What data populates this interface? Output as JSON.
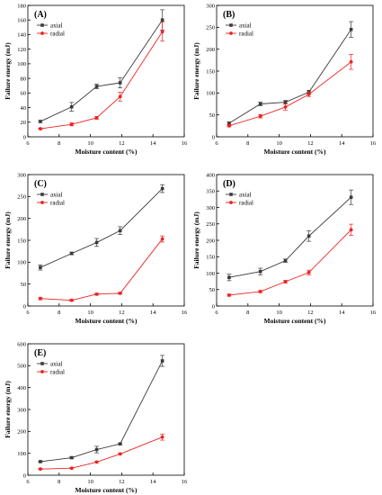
{
  "colors": {
    "axial": "#3a3a3a",
    "radial": "#ee2222",
    "axis": "#000000"
  },
  "chart_data": [
    {
      "type": "line",
      "panel_label": "(A)",
      "xlabel": "Moisture content (%)",
      "ylabel": "Failure energy (mJ)",
      "xlim": [
        6,
        16
      ],
      "ylim": [
        0,
        180
      ],
      "xticks": [
        6,
        8,
        10,
        12,
        14,
        16
      ],
      "yticks": [
        0,
        20,
        40,
        60,
        80,
        100,
        120,
        140,
        160,
        180
      ],
      "x": [
        6.8,
        8.8,
        10.4,
        11.9,
        14.6
      ],
      "legend_position": "top-left",
      "series": [
        {
          "name": "axial",
          "values": [
            21,
            41,
            69,
            74,
            160
          ],
          "errors": [
            1.5,
            6,
            3,
            7,
            14
          ]
        },
        {
          "name": "radial",
          "values": [
            11,
            17,
            26,
            55,
            144
          ],
          "errors": [
            1,
            2,
            2,
            6,
            13
          ]
        }
      ]
    },
    {
      "type": "line",
      "panel_label": "(B)",
      "xlabel": "Moisture content (%)",
      "ylabel": "Failure energy (mJ)",
      "xlim": [
        6,
        16
      ],
      "ylim": [
        0,
        300
      ],
      "xticks": [
        6,
        8,
        10,
        12,
        14,
        16
      ],
      "yticks": [
        0,
        50,
        100,
        150,
        200,
        250,
        300
      ],
      "x": [
        6.8,
        8.8,
        10.4,
        11.9,
        14.6
      ],
      "legend_position": "top-left",
      "series": [
        {
          "name": "axial",
          "values": [
            31,
            75,
            79,
            102,
            245
          ],
          "errors": [
            3,
            4,
            4,
            4,
            18
          ]
        },
        {
          "name": "radial",
          "values": [
            25,
            47,
            68,
            97,
            171
          ],
          "errors": [
            2,
            4,
            7,
            5,
            17
          ]
        }
      ]
    },
    {
      "type": "line",
      "panel_label": "(C)",
      "xlabel": "Moisture content (%)",
      "ylabel": "Failure energy (mJ)",
      "xlim": [
        6,
        16
      ],
      "ylim": [
        0,
        300
      ],
      "xticks": [
        6,
        8,
        10,
        12,
        14,
        16
      ],
      "yticks": [
        0,
        50,
        100,
        150,
        200,
        250,
        300
      ],
      "x": [
        6.8,
        8.8,
        10.4,
        11.9,
        14.6
      ],
      "legend_position": "top-left",
      "series": [
        {
          "name": "axial",
          "values": [
            88,
            120,
            145,
            172,
            268
          ],
          "errors": [
            6,
            3,
            9,
            9,
            9
          ]
        },
        {
          "name": "radial",
          "values": [
            17,
            13,
            27,
            29,
            153
          ],
          "errors": [
            3,
            2,
            2,
            2,
            7
          ]
        }
      ]
    },
    {
      "type": "line",
      "panel_label": "(D)",
      "xlabel": "Moisture content (%)",
      "ylabel": "Failure energy (mJ)",
      "xlim": [
        6,
        16
      ],
      "ylim": [
        0,
        400
      ],
      "xticks": [
        6,
        8,
        10,
        12,
        14,
        16
      ],
      "yticks": [
        0,
        50,
        100,
        150,
        200,
        250,
        300,
        350,
        400
      ],
      "x": [
        6.8,
        8.8,
        10.4,
        11.9,
        14.6
      ],
      "legend_position": "top-left",
      "series": [
        {
          "name": "axial",
          "values": [
            87,
            105,
            138,
            213,
            331
          ],
          "errors": [
            10,
            10,
            5,
            16,
            22
          ]
        },
        {
          "name": "radial",
          "values": [
            33,
            44,
            74,
            102,
            232
          ],
          "errors": [
            3,
            3,
            4,
            7,
            17
          ]
        }
      ]
    },
    {
      "type": "line",
      "panel_label": "(E)",
      "xlabel": "Moisture content (%)",
      "ylabel": "Failure energy (mJ)",
      "xlim": [
        6,
        16
      ],
      "ylim": [
        0,
        600
      ],
      "xticks": [
        6,
        8,
        10,
        12,
        14,
        16
      ],
      "yticks": [
        0,
        100,
        200,
        300,
        400,
        500,
        600
      ],
      "x": [
        6.8,
        8.8,
        10.4,
        11.9,
        14.6
      ],
      "legend_position": "top-left",
      "series": [
        {
          "name": "axial",
          "values": [
            62,
            80,
            117,
            143,
            522
          ],
          "errors": [
            3,
            4,
            15,
            4,
            25
          ]
        },
        {
          "name": "radial",
          "values": [
            28,
            32,
            60,
            97,
            174
          ],
          "errors": [
            2,
            2,
            3,
            3,
            14
          ]
        }
      ]
    }
  ]
}
